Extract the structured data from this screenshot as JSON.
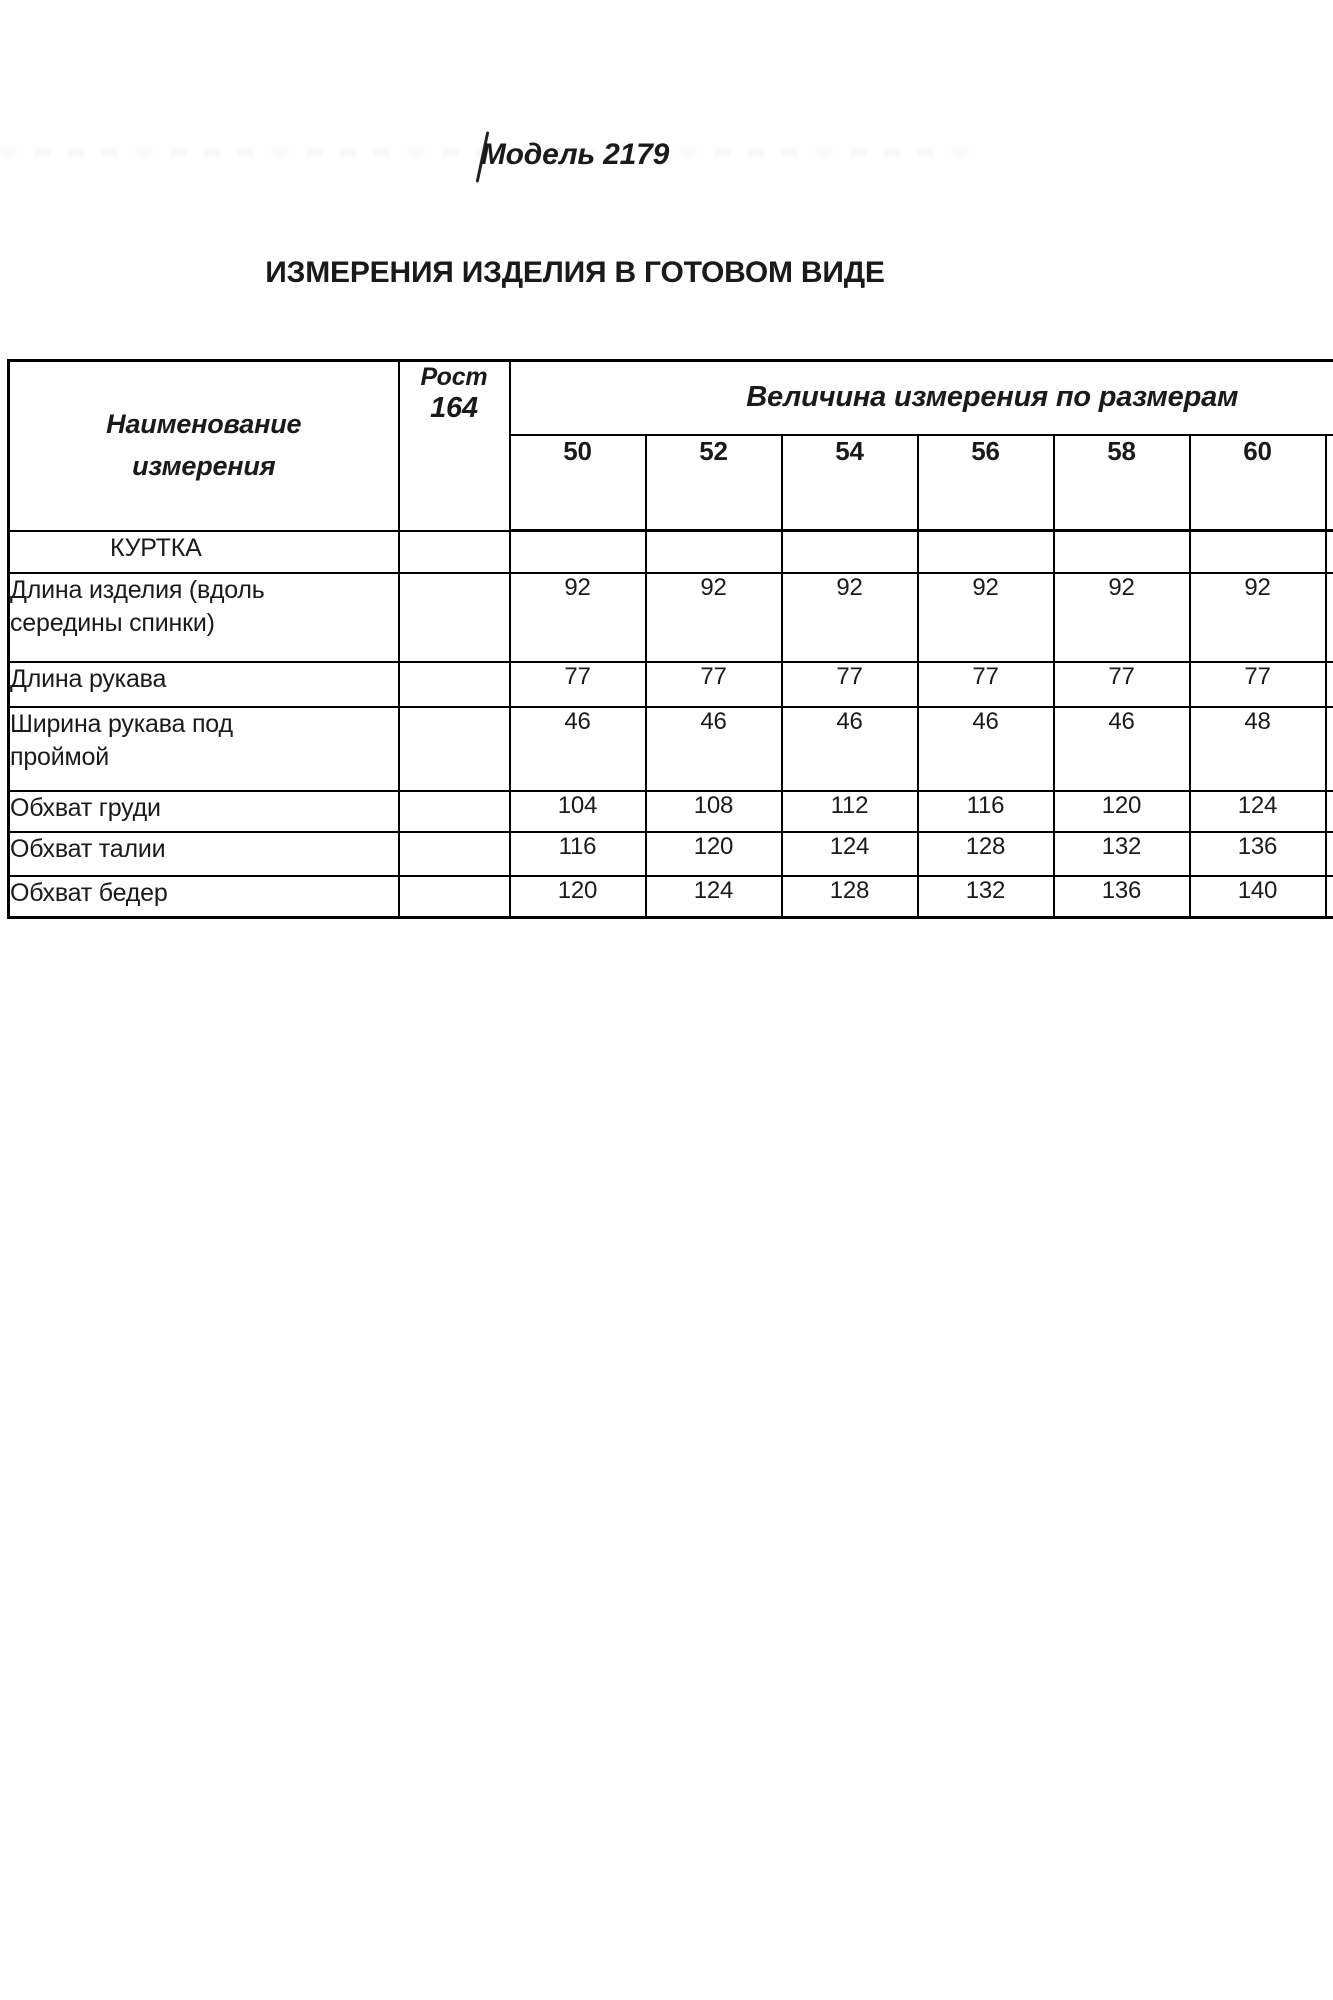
{
  "document": {
    "model_title": "Модель 2179",
    "heading": "ИЗМЕРЕНИЯ ИЗДЕЛИЯ В ГОТОВОМ ВИДЕ"
  },
  "table": {
    "name_column_header": "Наименование\nизмерения",
    "height_label": "Рост",
    "height_value": "164",
    "sizes_group_header": "Величина измерения по размерам",
    "size_headers": [
      "50",
      "52",
      "54",
      "56",
      "58",
      "60"
    ],
    "rows": [
      {
        "label": "КУРТКА",
        "section": true,
        "values": [
          "",
          "",
          "",
          "",
          "",
          ""
        ]
      },
      {
        "label": "Длина изделия (вдоль\nсередины спинки)",
        "section": false,
        "values": [
          "92",
          "92",
          "92",
          "92",
          "92",
          "92"
        ]
      },
      {
        "label": "Длина рукава",
        "section": false,
        "values": [
          "77",
          "77",
          "77",
          "77",
          "77",
          "77"
        ]
      },
      {
        "label": "Ширина рукава под\nпроймой",
        "section": false,
        "values": [
          "46",
          "46",
          "46",
          "46",
          "46",
          "48"
        ]
      },
      {
        "label": "Обхват груди",
        "section": false,
        "values": [
          "104",
          "108",
          "112",
          "116",
          "120",
          "124"
        ]
      },
      {
        "label": "Обхват талии",
        "section": false,
        "values": [
          "116",
          "120",
          "124",
          "128",
          "132",
          "136"
        ]
      },
      {
        "label": "Обхват бедер",
        "section": false,
        "values": [
          "120",
          "124",
          "128",
          "132",
          "136",
          "140"
        ]
      }
    ]
  },
  "colors": {
    "text": "#1a1a1a",
    "border": "#000000",
    "background": "#ffffff"
  }
}
